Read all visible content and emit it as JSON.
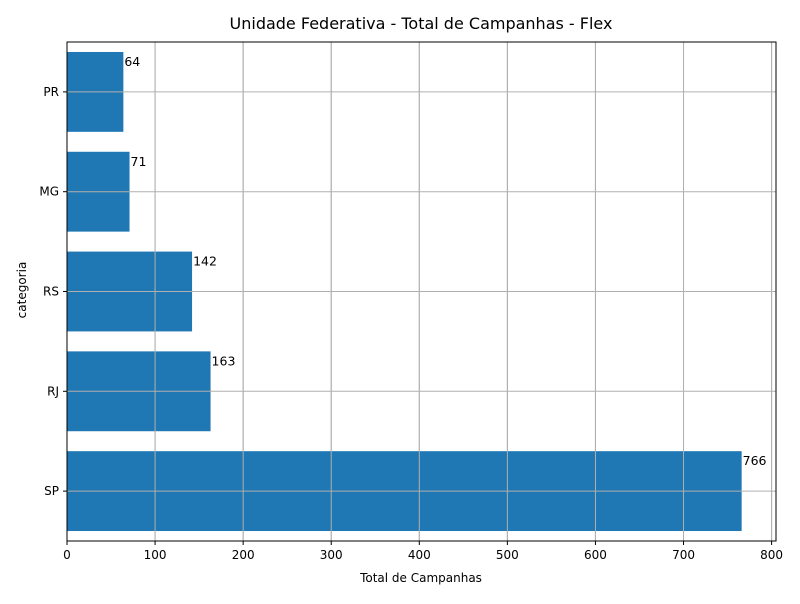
{
  "chart_data": {
    "type": "bar",
    "orientation": "horizontal",
    "title": "Unidade Federativa - Total de Campanhas - Flex",
    "xlabel": "Total de Campanhas",
    "ylabel": "categoria",
    "categories": [
      "SP",
      "RJ",
      "RS",
      "MG",
      "PR"
    ],
    "values": [
      766,
      163,
      142,
      71,
      64
    ],
    "data_labels": [
      "766",
      "163",
      "142",
      "71",
      "64"
    ],
    "xlim": [
      0,
      805
    ],
    "xticks": [
      0,
      100,
      200,
      300,
      400,
      500,
      600,
      700,
      800
    ],
    "xtick_labels": [
      "0",
      "100",
      "200",
      "300",
      "400",
      "500",
      "600",
      "700",
      "800"
    ],
    "grid": true,
    "bar_color": "#1f77b4",
    "grid_color": "#b0b0b0"
  }
}
